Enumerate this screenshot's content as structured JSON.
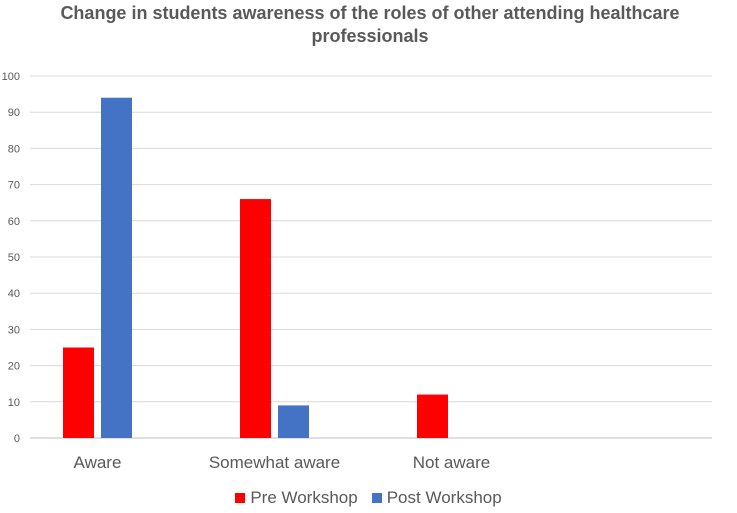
{
  "chart_data": {
    "type": "bar",
    "title": "Change in students awareness of the roles of other attending healthcare professionals",
    "categories": [
      "Aware",
      "Somewhat aware",
      "Not aware"
    ],
    "series": [
      {
        "name": "Pre Workshop",
        "color": "#ff0000",
        "values": [
          25,
          66,
          12
        ]
      },
      {
        "name": "Post Workshop",
        "color": "#4472c4",
        "values": [
          94,
          9,
          0
        ]
      }
    ],
    "ylim": [
      0,
      100
    ],
    "ytick_step": 10,
    "grid": true,
    "legend_position": "bottom"
  }
}
